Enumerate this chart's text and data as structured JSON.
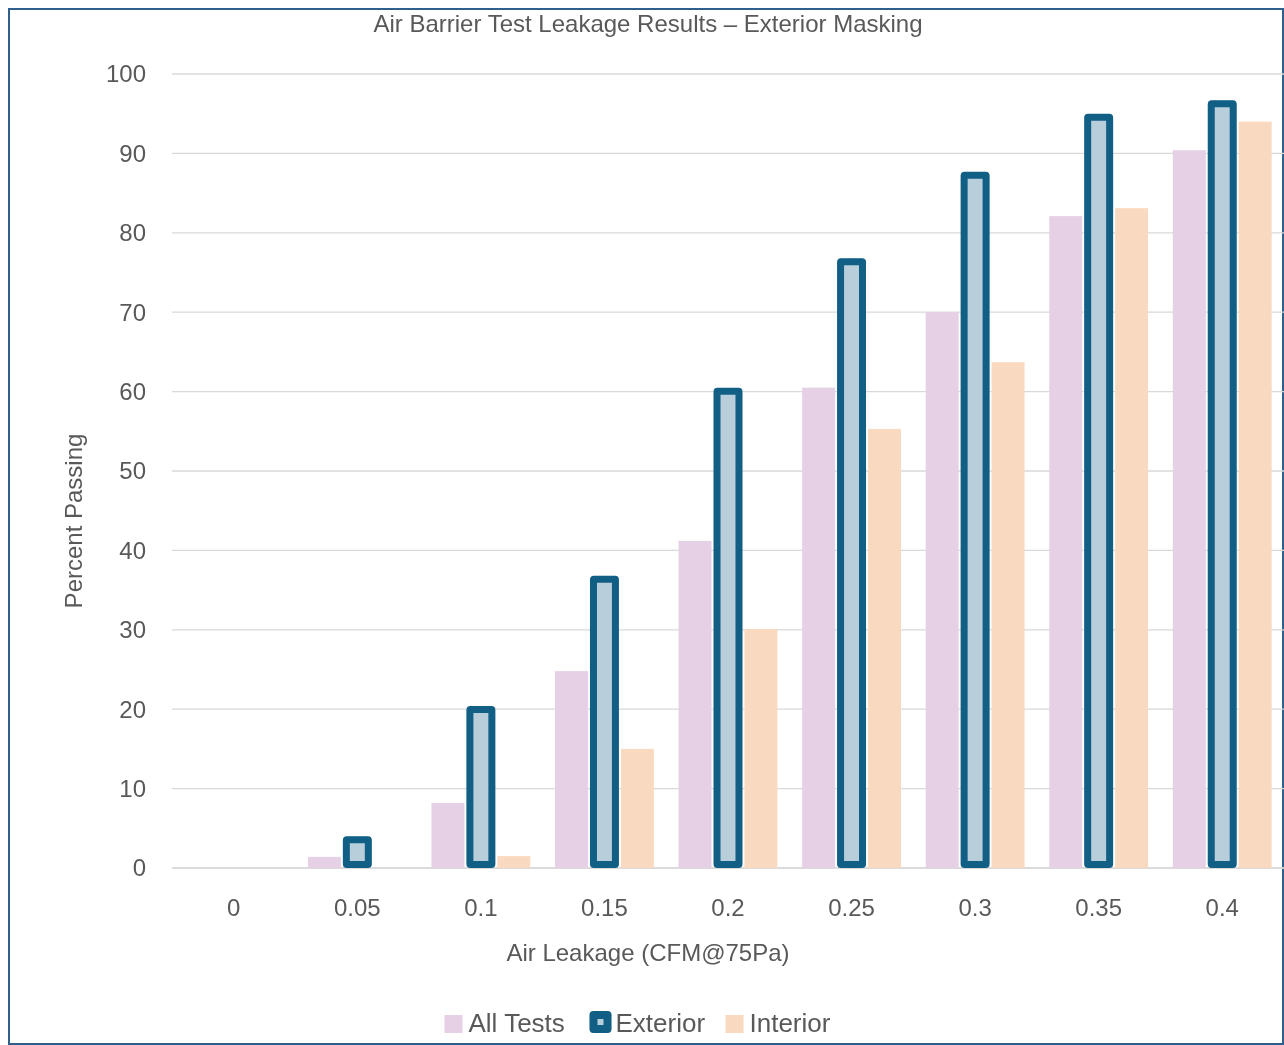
{
  "chart_data": {
    "type": "bar",
    "title": "Air Barrier Test Leakage Results – Exterior Masking",
    "xlabel": "Air Leakage (CFM@75Pa)",
    "ylabel": "Percent Passing",
    "categories": [
      "0",
      "0.05",
      "0.1",
      "0.15",
      "0.2",
      "0.25",
      "0.3",
      "0.35",
      "0.4"
    ],
    "series": [
      {
        "name": "All Tests",
        "color": "#e6d0e6",
        "values": [
          0,
          1.4,
          8.2,
          24.8,
          41.2,
          60.5,
          70,
          82.1,
          90.4
        ]
      },
      {
        "name": "Exterior",
        "color": "#125f86",
        "values": [
          0,
          4,
          20.4,
          36.8,
          60.5,
          76.8,
          87.7,
          95,
          96.7
        ]
      },
      {
        "name": "Interior",
        "color": "#f9dac0",
        "values": [
          0,
          0,
          1.5,
          15,
          30.1,
          55.3,
          63.7,
          83.1,
          94
        ]
      }
    ],
    "ylim": [
      0,
      100
    ],
    "yticks": [
      0,
      10,
      20,
      30,
      40,
      50,
      60,
      70,
      80,
      90,
      100
    ],
    "grid": "y",
    "legend": "bottom"
  }
}
